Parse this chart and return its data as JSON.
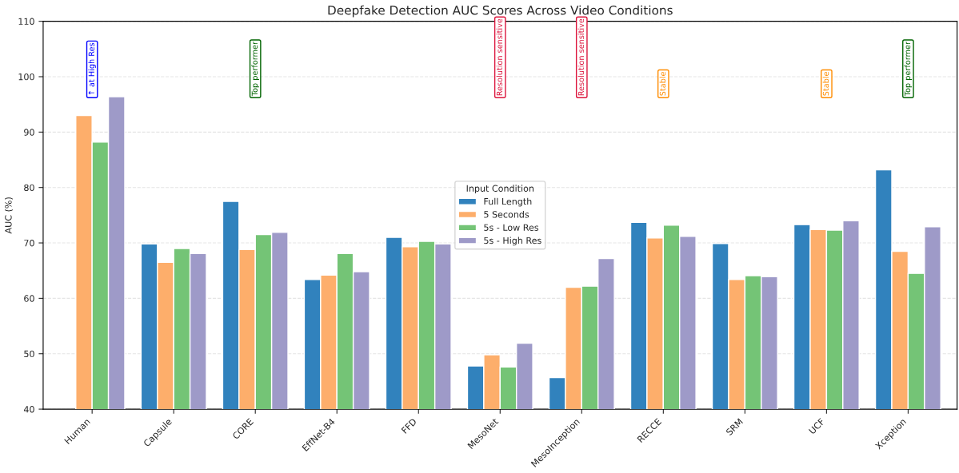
{
  "chart_data": {
    "type": "bar",
    "title": "Deepfake Detection AUC Scores Across Video Conditions",
    "ylabel": "AUC (%)",
    "legend_title": "Input Condition",
    "categories": [
      "Human",
      "Capsule",
      "CORE",
      "EffNet-B4",
      "FFD",
      "MesoNet",
      "MesoInception",
      "RECCE",
      "SRM",
      "UCF",
      "Xception"
    ],
    "series": [
      {
        "name": "Full Length",
        "color": "#3182bd",
        "values": [
          null,
          69.8,
          77.5,
          63.4,
          71.0,
          47.8,
          45.7,
          73.7,
          69.9,
          73.3,
          83.2
        ]
      },
      {
        "name": "5 Seconds",
        "color": "#fdae6b",
        "values": [
          93.0,
          66.5,
          68.8,
          64.2,
          69.3,
          49.8,
          62.0,
          70.9,
          63.4,
          72.4,
          68.5
        ]
      },
      {
        "name": "5s - Low Res",
        "color": "#74c476",
        "values": [
          88.2,
          69.0,
          71.5,
          68.1,
          70.3,
          47.6,
          62.2,
          73.2,
          64.1,
          72.3,
          64.5
        ]
      },
      {
        "name": "5s - High Res",
        "color": "#9e9ac8",
        "values": [
          96.4,
          68.1,
          71.9,
          64.8,
          69.8,
          51.9,
          67.2,
          71.2,
          63.9,
          74.0,
          72.9
        ]
      }
    ],
    "ylim": [
      40,
      110
    ],
    "yticks": [
      40,
      50,
      60,
      70,
      80,
      90,
      100,
      110
    ],
    "grid": "y",
    "legend": "center",
    "annotations": [
      "↑ at High Res",
      "Top performer",
      "Resolution sensitive",
      "Resolution sensitive",
      "Stable",
      "Stable",
      "Top performer"
    ]
  }
}
